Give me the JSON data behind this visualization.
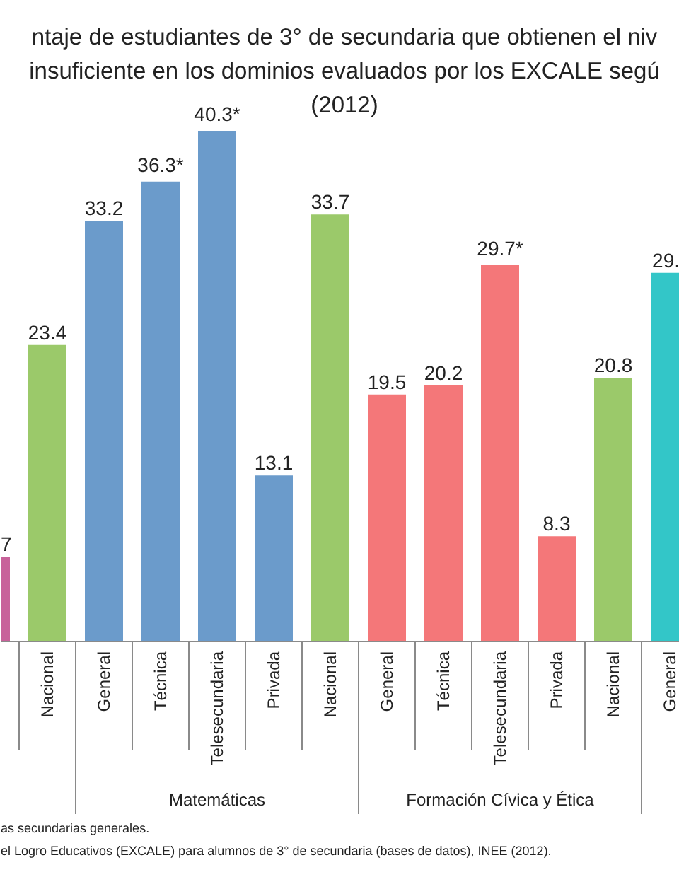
{
  "chart_data": {
    "type": "bar",
    "title": "ntaje de estudiantes de 3° de secundaria que obtienen el niv\ninsuficiente en los dominios evaluados por los EXCALE segú\n(2012)",
    "categories": [
      null,
      "Nacional",
      "General",
      "Técnica",
      "Telesecundaria",
      "Privada",
      "Nacional",
      "General",
      "Técnica",
      "Telesecundaria",
      "Privada",
      "Nacional",
      "General"
    ],
    "values": [
      6.7,
      23.4,
      33.2,
      36.3,
      40.3,
      13.1,
      33.7,
      19.5,
      20.2,
      29.7,
      8.3,
      20.8,
      29.1
    ],
    "colors": [
      "#c8629a",
      "#9bc96a",
      "#6b9bcb",
      "#6b9bcb",
      "#6b9bcb",
      "#6b9bcb",
      "#9bc96a",
      "#f47779",
      "#f47779",
      "#f47779",
      "#f47779",
      "#9bc96a",
      "#33c6c8"
    ],
    "value_labels": [
      "7",
      "23.4",
      "33.2",
      "36.3*",
      "40.3*",
      "13.1",
      "33.7",
      "19.5",
      "20.2",
      "29.7*",
      "8.3",
      "20.8",
      "29."
    ],
    "annotations": [
      "Matemáticas",
      "Formación Cívica y Ética",
      "as secundarias generales.",
      "el Logro Educativos (EXCALE) para alumnos de 3° de secundaria (bases de datos), INEE (2012)."
    ]
  }
}
